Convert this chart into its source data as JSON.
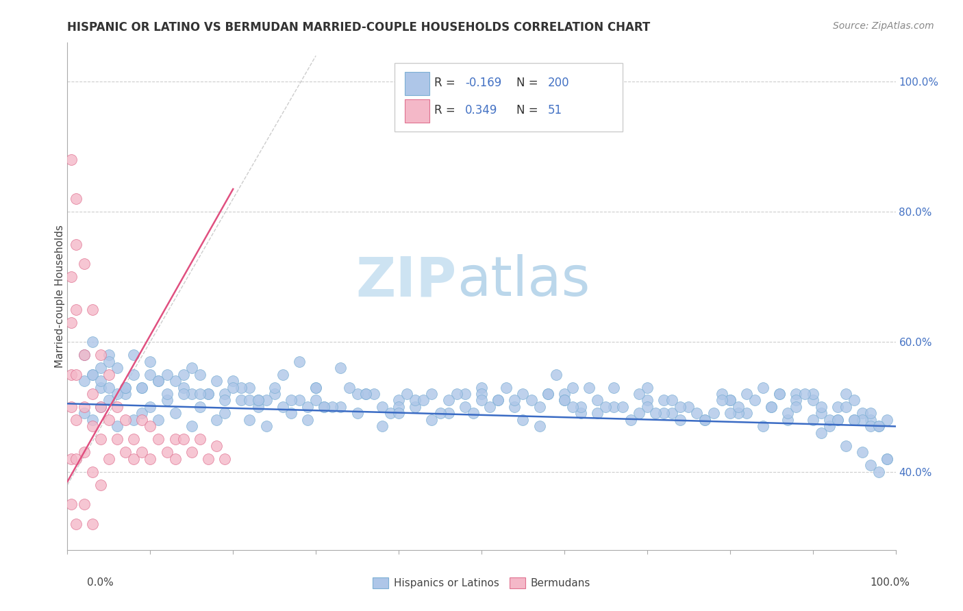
{
  "title": "HISPANIC OR LATINO VS BERMUDAN MARRIED-COUPLE HOUSEHOLDS CORRELATION CHART",
  "source": "Source: ZipAtlas.com",
  "ylabel": "Married-couple Households",
  "right_ytick_vals": [
    0.4,
    0.6,
    0.8,
    1.0
  ],
  "right_ytick_labels": [
    "40.0%",
    "60.0%",
    "80.0%",
    "100.0%"
  ],
  "xlim": [
    0.0,
    1.0
  ],
  "ylim": [
    0.28,
    1.06
  ],
  "blue_scatter_x": [
    0.02,
    0.03,
    0.04,
    0.05,
    0.06,
    0.07,
    0.08,
    0.09,
    0.1,
    0.11,
    0.12,
    0.13,
    0.14,
    0.15,
    0.16,
    0.17,
    0.18,
    0.19,
    0.2,
    0.21,
    0.22,
    0.23,
    0.24,
    0.25,
    0.26,
    0.27,
    0.28,
    0.29,
    0.3,
    0.31,
    0.33,
    0.35,
    0.36,
    0.38,
    0.4,
    0.42,
    0.44,
    0.46,
    0.48,
    0.5,
    0.52,
    0.54,
    0.55,
    0.57,
    0.59,
    0.6,
    0.62,
    0.64,
    0.66,
    0.68,
    0.7,
    0.72,
    0.73,
    0.75,
    0.77,
    0.79,
    0.8,
    0.82,
    0.84,
    0.85,
    0.87,
    0.88,
    0.9,
    0.91,
    0.92,
    0.93,
    0.94,
    0.95,
    0.96,
    0.97,
    0.03,
    0.05,
    0.08,
    0.1,
    0.15,
    0.18,
    0.22,
    0.28,
    0.35,
    0.42,
    0.48,
    0.55,
    0.63,
    0.7,
    0.78,
    0.85,
    0.9,
    0.95,
    0.97,
    0.99,
    0.04,
    0.07,
    0.11,
    0.14,
    0.19,
    0.24,
    0.3,
    0.38,
    0.45,
    0.52,
    0.58,
    0.65,
    0.72,
    0.8,
    0.86,
    0.91,
    0.96,
    0.02,
    0.06,
    0.12,
    0.16,
    0.21,
    0.27,
    0.33,
    0.41,
    0.49,
    0.56,
    0.61,
    0.69,
    0.74,
    0.81,
    0.88,
    0.93,
    0.98,
    0.03,
    0.09,
    0.13,
    0.17,
    0.23,
    0.32,
    0.39,
    0.47,
    0.53,
    0.6,
    0.67,
    0.76,
    0.83,
    0.89,
    0.94,
    0.99,
    0.05,
    0.1,
    0.2,
    0.3,
    0.4,
    0.5,
    0.6,
    0.7,
    0.8,
    0.9,
    0.02,
    0.04,
    0.06,
    0.08,
    0.12,
    0.25,
    0.37,
    0.43,
    0.51,
    0.58,
    0.66,
    0.73,
    0.81,
    0.87,
    0.92,
    0.97,
    0.03,
    0.07,
    0.11,
    0.15,
    0.19,
    0.26,
    0.34,
    0.44,
    0.54,
    0.62,
    0.71,
    0.79,
    0.86,
    0.95,
    0.04,
    0.09,
    0.16,
    0.22,
    0.29,
    0.36,
    0.46,
    0.57,
    0.64,
    0.74,
    0.82,
    0.88,
    0.93,
    0.98,
    0.05,
    0.14,
    0.23,
    0.31,
    0.4,
    0.5,
    0.61,
    0.69,
    0.77,
    0.84,
    0.91,
    0.99,
    0.97,
    0.98,
    0.96,
    0.94
  ],
  "blue_scatter_y": [
    0.49,
    0.48,
    0.5,
    0.51,
    0.47,
    0.52,
    0.48,
    0.49,
    0.5,
    0.48,
    0.51,
    0.49,
    0.53,
    0.47,
    0.5,
    0.52,
    0.48,
    0.49,
    0.54,
    0.51,
    0.48,
    0.5,
    0.47,
    0.52,
    0.55,
    0.49,
    0.51,
    0.48,
    0.53,
    0.5,
    0.56,
    0.49,
    0.52,
    0.47,
    0.51,
    0.5,
    0.48,
    0.49,
    0.52,
    0.53,
    0.51,
    0.5,
    0.48,
    0.47,
    0.55,
    0.52,
    0.49,
    0.51,
    0.5,
    0.48,
    0.53,
    0.51,
    0.49,
    0.5,
    0.48,
    0.52,
    0.51,
    0.49,
    0.53,
    0.5,
    0.48,
    0.52,
    0.51,
    0.49,
    0.47,
    0.5,
    0.52,
    0.51,
    0.49,
    0.48,
    0.6,
    0.58,
    0.55,
    0.57,
    0.56,
    0.54,
    0.53,
    0.57,
    0.52,
    0.51,
    0.5,
    0.52,
    0.53,
    0.51,
    0.49,
    0.5,
    0.52,
    0.48,
    0.49,
    0.42,
    0.56,
    0.53,
    0.54,
    0.55,
    0.52,
    0.51,
    0.53,
    0.5,
    0.49,
    0.51,
    0.52,
    0.5,
    0.49,
    0.51,
    0.52,
    0.5,
    0.48,
    0.58,
    0.56,
    0.52,
    0.55,
    0.53,
    0.51,
    0.5,
    0.52,
    0.49,
    0.51,
    0.53,
    0.52,
    0.5,
    0.49,
    0.51,
    0.48,
    0.47,
    0.55,
    0.53,
    0.54,
    0.52,
    0.51,
    0.5,
    0.49,
    0.52,
    0.53,
    0.51,
    0.5,
    0.49,
    0.51,
    0.52,
    0.5,
    0.48,
    0.57,
    0.55,
    0.53,
    0.51,
    0.5,
    0.52,
    0.51,
    0.5,
    0.49,
    0.48,
    0.54,
    0.53,
    0.52,
    0.58,
    0.55,
    0.53,
    0.52,
    0.51,
    0.5,
    0.52,
    0.53,
    0.51,
    0.5,
    0.49,
    0.48,
    0.47,
    0.55,
    0.53,
    0.54,
    0.52,
    0.51,
    0.5,
    0.53,
    0.52,
    0.51,
    0.5,
    0.49,
    0.51,
    0.52,
    0.48,
    0.54,
    0.53,
    0.52,
    0.51,
    0.5,
    0.52,
    0.51,
    0.5,
    0.49,
    0.48,
    0.52,
    0.5,
    0.48,
    0.47,
    0.53,
    0.52,
    0.51,
    0.5,
    0.49,
    0.51,
    0.5,
    0.49,
    0.48,
    0.47,
    0.46,
    0.42,
    0.41,
    0.4,
    0.43,
    0.44
  ],
  "pink_scatter_x": [
    0.005,
    0.005,
    0.005,
    0.005,
    0.005,
    0.005,
    0.005,
    0.01,
    0.01,
    0.01,
    0.01,
    0.01,
    0.01,
    0.01,
    0.02,
    0.02,
    0.02,
    0.02,
    0.02,
    0.03,
    0.03,
    0.03,
    0.03,
    0.03,
    0.04,
    0.04,
    0.04,
    0.04,
    0.05,
    0.05,
    0.05,
    0.06,
    0.06,
    0.07,
    0.07,
    0.08,
    0.08,
    0.09,
    0.09,
    0.1,
    0.1,
    0.11,
    0.12,
    0.13,
    0.13,
    0.14,
    0.15,
    0.16,
    0.17,
    0.18,
    0.19
  ],
  "pink_scatter_y": [
    0.88,
    0.7,
    0.63,
    0.55,
    0.5,
    0.42,
    0.35,
    0.82,
    0.75,
    0.65,
    0.55,
    0.48,
    0.42,
    0.32,
    0.72,
    0.58,
    0.5,
    0.43,
    0.35,
    0.65,
    0.52,
    0.47,
    0.4,
    0.32,
    0.58,
    0.5,
    0.45,
    0.38,
    0.55,
    0.48,
    0.42,
    0.5,
    0.45,
    0.48,
    0.43,
    0.45,
    0.42,
    0.48,
    0.43,
    0.47,
    0.42,
    0.45,
    0.43,
    0.45,
    0.42,
    0.45,
    0.43,
    0.45,
    0.42,
    0.44,
    0.42
  ],
  "blue_line_x": [
    0.0,
    1.0
  ],
  "blue_line_y": [
    0.505,
    0.47
  ],
  "pink_line_x": [
    0.0,
    0.2
  ],
  "pink_line_y": [
    0.385,
    0.835
  ],
  "ref_line_x": [
    0.0,
    0.3
  ],
  "ref_line_y": [
    0.38,
    1.04
  ],
  "watermark_zip": "ZIP",
  "watermark_atlas": "atlas",
  "watermark_color_zip": "#c8dff0",
  "watermark_color_atlas": "#b8d8e8",
  "bg_color": "#ffffff",
  "title_fontsize": 12,
  "dot_size": 130
}
